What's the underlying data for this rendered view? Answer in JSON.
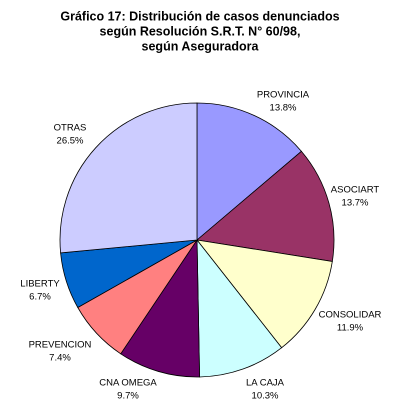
{
  "chart_data": {
    "type": "pie",
    "title": [
      "Gráfico 17: Distribución de casos denunciados",
      "según Resolución S.R.T. N° 60/98,",
      "según Aseguradora"
    ],
    "categories": [
      "PROVINCIA",
      "ASOCIART",
      "CONSOLIDAR",
      "LA CAJA",
      "CNA OMEGA",
      "PREVENCION",
      "LIBERTY",
      "OTRAS"
    ],
    "values": [
      13.8,
      13.7,
      11.9,
      10.3,
      9.7,
      7.4,
      6.7,
      26.5
    ],
    "value_labels": [
      "13.8%",
      "13.7%",
      "11.9%",
      "10.3%",
      "9.7%",
      "7.4%",
      "6.7%",
      "26.5%"
    ],
    "colors": [
      "#9999ff",
      "#993366",
      "#ffffcc",
      "#ccffff",
      "#660066",
      "#ff8080",
      "#0066cc",
      "#ccccff"
    ]
  }
}
